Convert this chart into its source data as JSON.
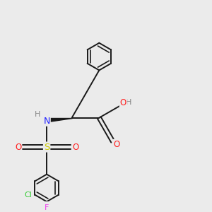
{
  "bg_color": "#ebebeb",
  "bond_color": "#1a1a1a",
  "bond_width": 1.4,
  "atom_colors": {
    "N": "#2020ff",
    "O": "#ff2020",
    "S": "#cccc00",
    "Cl": "#33cc33",
    "F": "#ee44ee",
    "H": "#888888",
    "C": "#1a1a1a"
  },
  "figsize": [
    3.0,
    3.0
  ],
  "dpi": 100
}
